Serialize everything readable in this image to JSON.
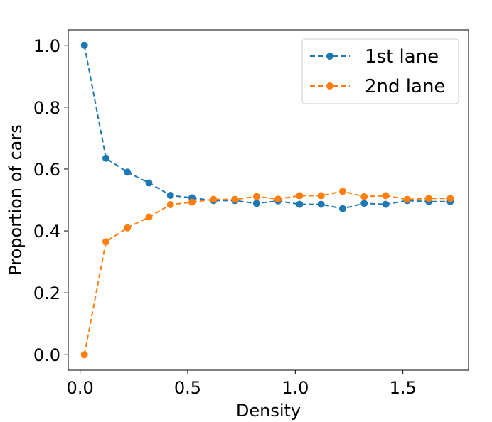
{
  "chart_data": {
    "type": "line",
    "xlabel": "Density",
    "ylabel": "Proportion of cars",
    "xlim": [
      -0.055,
      1.805
    ],
    "ylim": [
      -0.05,
      1.05
    ],
    "xticks": [
      "0.0",
      "0.5",
      "1.0",
      "1.5"
    ],
    "yticks": [
      "0.0",
      "0.2",
      "0.4",
      "0.6",
      "0.8",
      "1.0"
    ],
    "grid": false,
    "legend_position": "top-right",
    "x": [
      0.02,
      0.12,
      0.22,
      0.32,
      0.42,
      0.52,
      0.62,
      0.72,
      0.82,
      0.92,
      1.02,
      1.12,
      1.22,
      1.32,
      1.42,
      1.52,
      1.62,
      1.72
    ],
    "series": [
      {
        "name": "1st lane",
        "color": "#1f77b4",
        "values": [
          1.0,
          0.635,
          0.59,
          0.555,
          0.515,
          0.507,
          0.498,
          0.498,
          0.489,
          0.497,
          0.486,
          0.486,
          0.472,
          0.489,
          0.486,
          0.498,
          0.495,
          0.495
        ]
      },
      {
        "name": "2nd lane",
        "color": "#ff7f0e",
        "values": [
          0.0,
          0.365,
          0.41,
          0.445,
          0.485,
          0.493,
          0.502,
          0.502,
          0.511,
          0.503,
          0.514,
          0.514,
          0.528,
          0.511,
          0.514,
          0.502,
          0.505,
          0.505
        ]
      }
    ]
  }
}
